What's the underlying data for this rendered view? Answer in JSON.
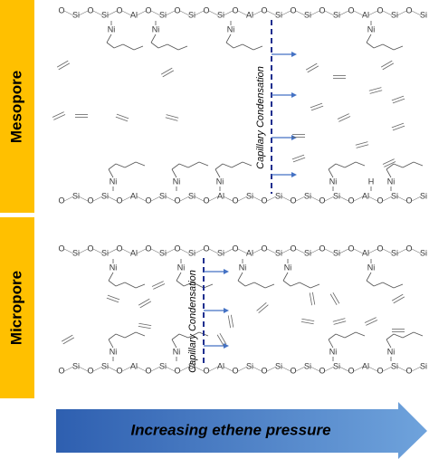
{
  "mesopore": {
    "label": "Mesopore",
    "top_chain": [
      "O",
      "Si",
      "O",
      "Si",
      "O",
      "Al",
      "O",
      "Si",
      "O",
      "Si",
      "O",
      "Si",
      "O",
      "Al",
      "O",
      "Si",
      "O",
      "Si",
      "O",
      "Si",
      "O",
      "Al",
      "O",
      "Si",
      "O",
      "Si"
    ],
    "top_pendants": [
      "Ni",
      "Ni",
      "Ni",
      "Ni"
    ],
    "bottom_chain": [
      "O",
      "Si",
      "O",
      "Si",
      "O",
      "Al",
      "O",
      "Si",
      "O",
      "Si",
      "O",
      "Al",
      "O",
      "Si",
      "O",
      "Si",
      "O",
      "Si",
      "O",
      "Si",
      "O",
      "Al",
      "O",
      "Si",
      "O",
      "Si"
    ],
    "bottom_pendants": [
      "Ni",
      "Ni",
      "Ni",
      "Ni",
      "H",
      "Ni"
    ],
    "annotation": "Capillary Condensation"
  },
  "micropore": {
    "label": "Micropore",
    "top_chain": [
      "O",
      "Si",
      "O",
      "Si",
      "O",
      "Al",
      "O",
      "Si",
      "O",
      "Si",
      "O",
      "Si",
      "O",
      "Al",
      "O",
      "Si",
      "O",
      "Si",
      "O",
      "Si",
      "O",
      "Al",
      "O",
      "Si",
      "O",
      "Si"
    ],
    "top_pendants": [
      "Ni",
      "Ni",
      "Ni",
      "Ni",
      "Ni"
    ],
    "bottom_chain": [
      "O",
      "Si",
      "O",
      "Si",
      "O",
      "Al",
      "O",
      "Si",
      "O",
      "Si",
      "O",
      "Al",
      "O",
      "Si",
      "O",
      "Si",
      "O",
      "Si",
      "O",
      "Si",
      "O",
      "Al",
      "O",
      "Si",
      "O",
      "Si"
    ],
    "bottom_pendants": [
      "Ni",
      "Ni",
      "Ni",
      "Ni"
    ],
    "annotation": "Capillary Condensation"
  },
  "arrow": {
    "label": "Increasing ethene pressure"
  }
}
